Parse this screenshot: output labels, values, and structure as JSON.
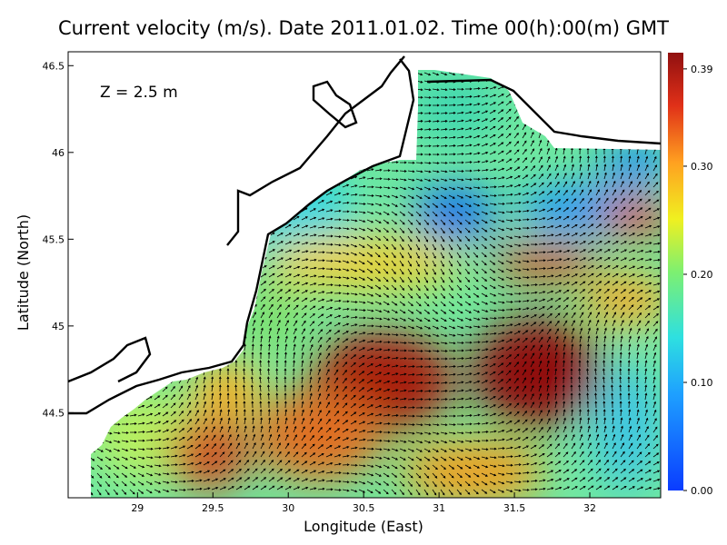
{
  "map": {
    "title": "Current velocity (m/s). Date 2011.01.02. Time 00(h):00(m) GMT",
    "annotation": "Z = 2.5 m",
    "x_label": "Longitude (East)",
    "y_label": "Latitude (North)",
    "xlim": [
      28.54,
      32.47
    ],
    "xticks": [
      29,
      29.5,
      30,
      30.5,
      31,
      31.5,
      32
    ],
    "ylim": [
      44.01,
      46.58
    ],
    "yticks": [
      44.5,
      45,
      45.5,
      46,
      46.5
    ],
    "colorbar": {
      "lim": [
        0,
        0.405
      ],
      "ticks": [
        {
          "value": 0,
          "label": "0.00"
        },
        {
          "value": 0.1,
          "label": "0.10"
        },
        {
          "value": 0.2,
          "label": "0.20"
        },
        {
          "value": 0.3,
          "label": "0.30"
        },
        {
          "value": 0.39,
          "label": "0.39"
        }
      ]
    }
  }
}
